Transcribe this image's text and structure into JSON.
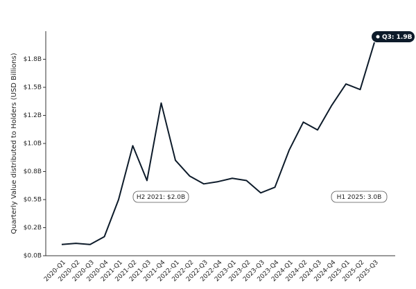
{
  "chart_data": {
    "type": "line",
    "y_label": "Quarterly Value distributed to Holders (USD Billions)",
    "categories": [
      "2020-Q1",
      "2020-Q2",
      "2020-Q3",
      "2020-Q4",
      "2021-Q1",
      "2021-Q2",
      "2021-Q3",
      "2021-Q4",
      "2022-Q1",
      "2022-Q2",
      "2022-Q3",
      "2022-Q4",
      "2023-Q1",
      "2023-Q2",
      "2023-Q3",
      "2023-Q4",
      "2024-Q1",
      "2024-Q2",
      "2024-Q3",
      "2024-Q4",
      "2025-Q1",
      "2025-Q2",
      "2025-Q3"
    ],
    "values": [
      0.1,
      0.11,
      0.1,
      0.17,
      0.5,
      0.98,
      0.67,
      1.36,
      0.85,
      0.71,
      0.64,
      0.66,
      0.69,
      0.67,
      0.56,
      0.61,
      0.94,
      1.19,
      1.12,
      1.34,
      1.53,
      1.48,
      1.9
    ],
    "value_labels": [
      null,
      null,
      null,
      null,
      null,
      null,
      null,
      null,
      null,
      null,
      null,
      null,
      null,
      null,
      null,
      null,
      null,
      null,
      null,
      null,
      null,
      null,
      "Q3: 1.9B"
    ],
    "color": "#0d1b2a",
    "ylim": [
      0,
      2.0
    ],
    "yticks": [
      {
        "value": 0,
        "label": "$0.0B"
      },
      {
        "value": 0.25,
        "label": "$0.2B"
      },
      {
        "value": 0.5,
        "label": "$0.5B"
      },
      {
        "value": 0.75,
        "label": "$0.8B"
      },
      {
        "value": 1.0,
        "label": "$1.0B"
      },
      {
        "value": 1.25,
        "label": "$1.2B"
      },
      {
        "value": 1.5,
        "label": "$1.5B"
      },
      {
        "value": 1.75,
        "label": "$1.8B"
      }
    ],
    "annotations": [
      "H2 2021: $2.0B",
      "H1 2025: 3.0B"
    ],
    "grid": false
  }
}
